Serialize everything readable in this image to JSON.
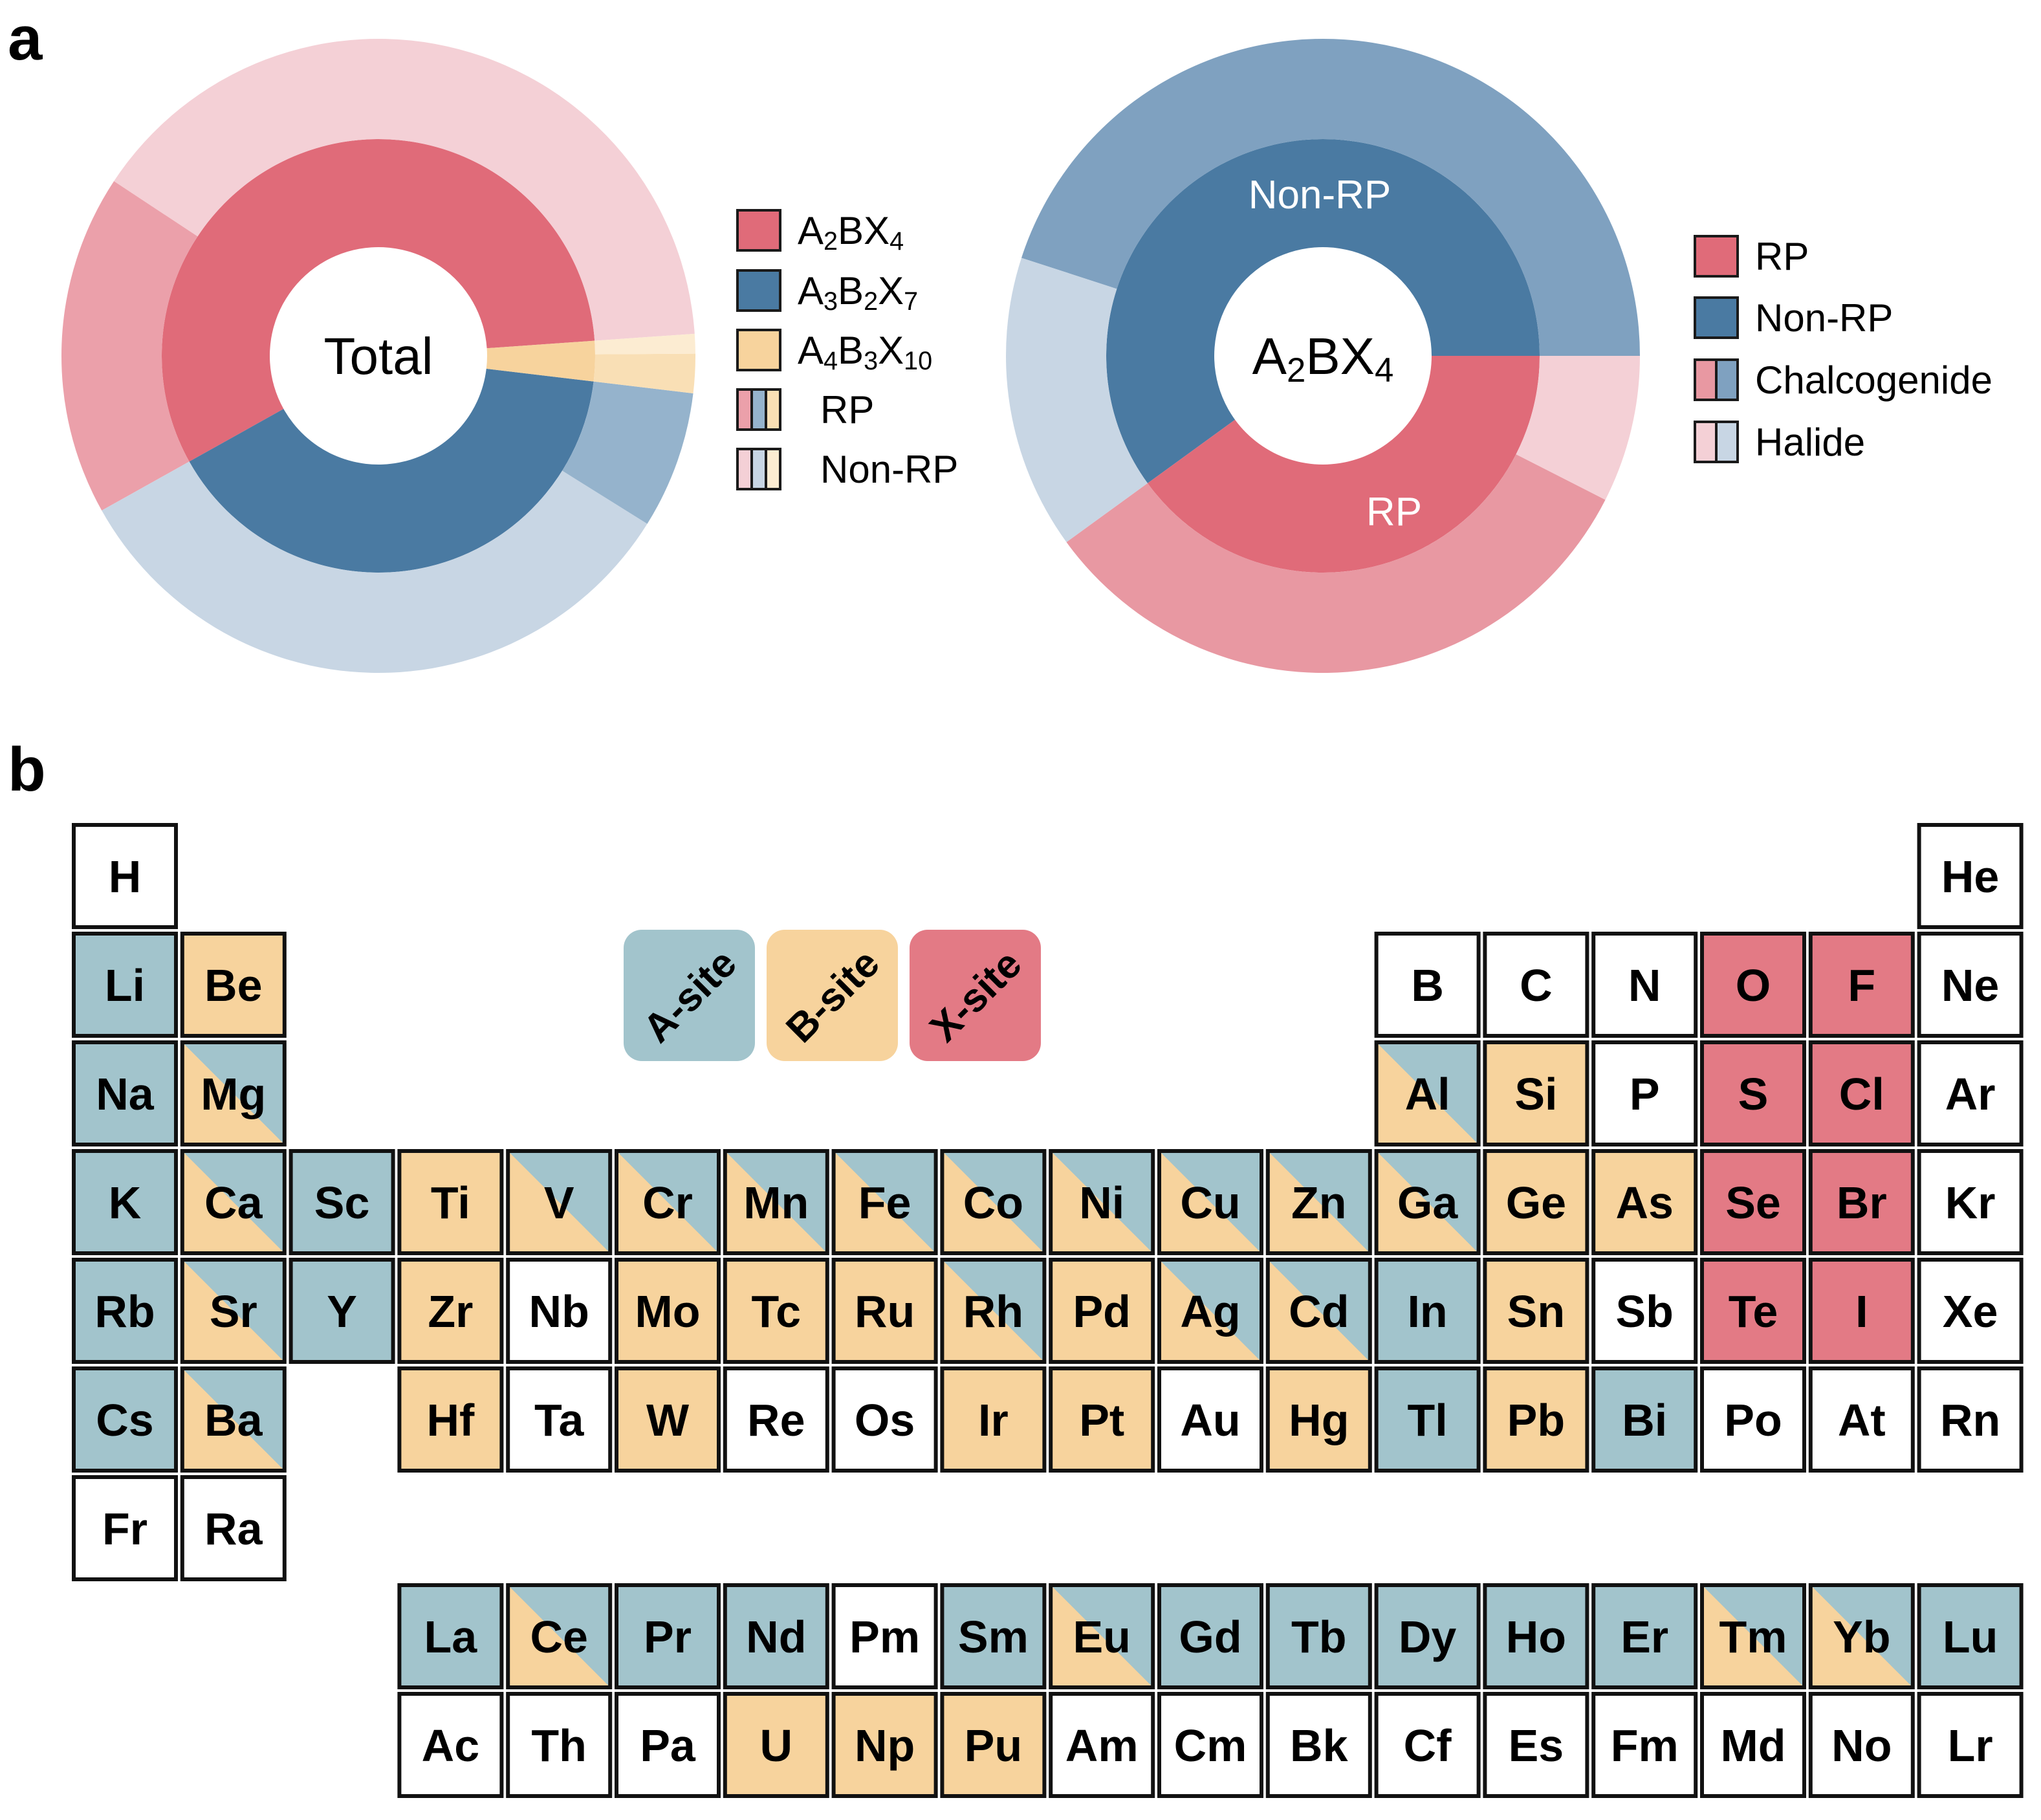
{
  "panel_a": {
    "letter": "a"
  },
  "panel_b": {
    "letter": "b"
  },
  "colors": {
    "A2BX4": "#e06b79",
    "A3B2X7": "#4a7aa2",
    "A4B3X10": "#f7d39d",
    "RP_red": "#eba0aa",
    "RP_blue": "#95b3cc",
    "RP_yellow": "#f9dfb5",
    "NonRP_red": "#f4d0d6",
    "NonRP_blue": "#c8d6e4",
    "NonRP_yellow": "#fcecd2",
    "outer_blue_dark": "#7fa1c0",
    "outer_red_mid": "#e898a2",
    "a_site": "#a2c4cc",
    "b_site": "#f7d39d",
    "x_site": "#e37a85",
    "empty": "#ffffff"
  },
  "chart_data": [
    {
      "type": "donut",
      "center_label": "Total",
      "inner_ring": [
        {
          "name": "A2BX4",
          "value": 57
        },
        {
          "name": "A3B2X7",
          "value": 40
        },
        {
          "name": "A4B3X10",
          "value": 3
        }
      ],
      "outer_ring": [
        {
          "group": "A2BX4",
          "kind": "Non-RP",
          "value": 39.6
        },
        {
          "group": "A2BX4",
          "kind": "RP",
          "value": 17.4
        },
        {
          "group": "A3B2X7",
          "kind": "Non-RP",
          "value": 33
        },
        {
          "group": "A3B2X7",
          "kind": "RP",
          "value": 7
        },
        {
          "group": "A4B3X10",
          "kind": "RP",
          "value": 2
        },
        {
          "group": "A4B3X10",
          "kind": "Non-RP",
          "value": 1
        }
      ],
      "legend": {
        "items": [
          {
            "kind": "solid",
            "color": "A2BX4",
            "label": "A",
            "s1": "2",
            "m": "BX",
            "s2": "4",
            "m2": "",
            "s3": ""
          },
          {
            "kind": "solid",
            "color": "A3B2X7",
            "label": "A",
            "s1": "3",
            "m": "B",
            "s2": "2",
            "m2": "X",
            "s3": "7"
          },
          {
            "kind": "solid",
            "color": "A4B3X10",
            "label": "A",
            "s1": "4",
            "m": "B",
            "s2": "3",
            "m2": "X",
            "s3": "10"
          },
          {
            "kind": "split3",
            "label": "RP"
          },
          {
            "kind": "split3",
            "label": "Non-RP"
          }
        ]
      }
    },
    {
      "type": "donut",
      "center_label": "A",
      "center_s1": "2",
      "center_m": "BX",
      "center_s2": "4",
      "inner_ring": [
        {
          "name": "Non-RP",
          "value": 60,
          "label": "Non-RP"
        },
        {
          "name": "RP",
          "value": 40,
          "label": "RP"
        }
      ],
      "outer_ring": [
        {
          "group": "Non-RP",
          "kind": "Chalcogenide",
          "value": 45
        },
        {
          "group": "Non-RP",
          "kind": "Halide",
          "value": 15
        },
        {
          "group": "RP",
          "kind": "Chalcogenide",
          "value": 32.5
        },
        {
          "group": "RP",
          "kind": "Halide",
          "value": 7.5
        }
      ],
      "legend": {
        "items": [
          {
            "kind": "solid",
            "color": "A2BX4",
            "label": "RP"
          },
          {
            "kind": "solid",
            "color": "A3B2X7",
            "label": "Non-RP"
          },
          {
            "kind": "split2",
            "label": "Chalcogenide"
          },
          {
            "kind": "split2",
            "label": "Halide"
          }
        ]
      }
    }
  ],
  "site_legend": [
    {
      "label": "A-site",
      "color": "a_site"
    },
    {
      "label": "B-site",
      "color": "b_site"
    },
    {
      "label": "X-site",
      "color": "x_site"
    }
  ],
  "periodic_table": [
    {
      "s": "H",
      "r": 1,
      "c": 1,
      "t": "N"
    },
    {
      "s": "He",
      "r": 1,
      "c": 18,
      "t": "N"
    },
    {
      "s": "Li",
      "r": 2,
      "c": 1,
      "t": "A"
    },
    {
      "s": "Be",
      "r": 2,
      "c": 2,
      "t": "B"
    },
    {
      "s": "B",
      "r": 2,
      "c": 13,
      "t": "N"
    },
    {
      "s": "C",
      "r": 2,
      "c": 14,
      "t": "N"
    },
    {
      "s": "N",
      "r": 2,
      "c": 15,
      "t": "N"
    },
    {
      "s": "O",
      "r": 2,
      "c": 16,
      "t": "X"
    },
    {
      "s": "F",
      "r": 2,
      "c": 17,
      "t": "X"
    },
    {
      "s": "Ne",
      "r": 2,
      "c": 18,
      "t": "N"
    },
    {
      "s": "Na",
      "r": 3,
      "c": 1,
      "t": "A"
    },
    {
      "s": "Mg",
      "r": 3,
      "c": 2,
      "t": "BA"
    },
    {
      "s": "Al",
      "r": 3,
      "c": 13,
      "t": "BA"
    },
    {
      "s": "Si",
      "r": 3,
      "c": 14,
      "t": "B"
    },
    {
      "s": "P",
      "r": 3,
      "c": 15,
      "t": "N"
    },
    {
      "s": "S",
      "r": 3,
      "c": 16,
      "t": "X"
    },
    {
      "s": "Cl",
      "r": 3,
      "c": 17,
      "t": "X"
    },
    {
      "s": "Ar",
      "r": 3,
      "c": 18,
      "t": "N"
    },
    {
      "s": "K",
      "r": 4,
      "c": 1,
      "t": "A"
    },
    {
      "s": "Ca",
      "r": 4,
      "c": 2,
      "t": "BA"
    },
    {
      "s": "Sc",
      "r": 4,
      "c": 3,
      "t": "A"
    },
    {
      "s": "Ti",
      "r": 4,
      "c": 4,
      "t": "B"
    },
    {
      "s": "V",
      "r": 4,
      "c": 5,
      "t": "BA"
    },
    {
      "s": "Cr",
      "r": 4,
      "c": 6,
      "t": "BA"
    },
    {
      "s": "Mn",
      "r": 4,
      "c": 7,
      "t": "BA"
    },
    {
      "s": "Fe",
      "r": 4,
      "c": 8,
      "t": "BA"
    },
    {
      "s": "Co",
      "r": 4,
      "c": 9,
      "t": "BA"
    },
    {
      "s": "Ni",
      "r": 4,
      "c": 10,
      "t": "BA"
    },
    {
      "s": "Cu",
      "r": 4,
      "c": 11,
      "t": "BA"
    },
    {
      "s": "Zn",
      "r": 4,
      "c": 12,
      "t": "BA"
    },
    {
      "s": "Ga",
      "r": 4,
      "c": 13,
      "t": "BA"
    },
    {
      "s": "Ge",
      "r": 4,
      "c": 14,
      "t": "B"
    },
    {
      "s": "As",
      "r": 4,
      "c": 15,
      "t": "B"
    },
    {
      "s": "Se",
      "r": 4,
      "c": 16,
      "t": "X"
    },
    {
      "s": "Br",
      "r": 4,
      "c": 17,
      "t": "X"
    },
    {
      "s": "Kr",
      "r": 4,
      "c": 18,
      "t": "N"
    },
    {
      "s": "Rb",
      "r": 5,
      "c": 1,
      "t": "A"
    },
    {
      "s": "Sr",
      "r": 5,
      "c": 2,
      "t": "BA"
    },
    {
      "s": "Y",
      "r": 5,
      "c": 3,
      "t": "A"
    },
    {
      "s": "Zr",
      "r": 5,
      "c": 4,
      "t": "B"
    },
    {
      "s": "Nb",
      "r": 5,
      "c": 5,
      "t": "N"
    },
    {
      "s": "Mo",
      "r": 5,
      "c": 6,
      "t": "B"
    },
    {
      "s": "Tc",
      "r": 5,
      "c": 7,
      "t": "B"
    },
    {
      "s": "Ru",
      "r": 5,
      "c": 8,
      "t": "B"
    },
    {
      "s": "Rh",
      "r": 5,
      "c": 9,
      "t": "BA"
    },
    {
      "s": "Pd",
      "r": 5,
      "c": 10,
      "t": "B"
    },
    {
      "s": "Ag",
      "r": 5,
      "c": 11,
      "t": "BA"
    },
    {
      "s": "Cd",
      "r": 5,
      "c": 12,
      "t": "BA"
    },
    {
      "s": "In",
      "r": 5,
      "c": 13,
      "t": "A"
    },
    {
      "s": "Sn",
      "r": 5,
      "c": 14,
      "t": "B"
    },
    {
      "s": "Sb",
      "r": 5,
      "c": 15,
      "t": "N"
    },
    {
      "s": "Te",
      "r": 5,
      "c": 16,
      "t": "X"
    },
    {
      "s": "I",
      "r": 5,
      "c": 17,
      "t": "X"
    },
    {
      "s": "Xe",
      "r": 5,
      "c": 18,
      "t": "N"
    },
    {
      "s": "Cs",
      "r": 6,
      "c": 1,
      "t": "A"
    },
    {
      "s": "Ba",
      "r": 6,
      "c": 2,
      "t": "BA"
    },
    {
      "s": "Hf",
      "r": 6,
      "c": 4,
      "t": "B"
    },
    {
      "s": "Ta",
      "r": 6,
      "c": 5,
      "t": "N"
    },
    {
      "s": "W",
      "r": 6,
      "c": 6,
      "t": "B"
    },
    {
      "s": "Re",
      "r": 6,
      "c": 7,
      "t": "N"
    },
    {
      "s": "Os",
      "r": 6,
      "c": 8,
      "t": "N"
    },
    {
      "s": "Ir",
      "r": 6,
      "c": 9,
      "t": "B"
    },
    {
      "s": "Pt",
      "r": 6,
      "c": 10,
      "t": "B"
    },
    {
      "s": "Au",
      "r": 6,
      "c": 11,
      "t": "N"
    },
    {
      "s": "Hg",
      "r": 6,
      "c": 12,
      "t": "B"
    },
    {
      "s": "Tl",
      "r": 6,
      "c": 13,
      "t": "A"
    },
    {
      "s": "Pb",
      "r": 6,
      "c": 14,
      "t": "B"
    },
    {
      "s": "Bi",
      "r": 6,
      "c": 15,
      "t": "A"
    },
    {
      "s": "Po",
      "r": 6,
      "c": 16,
      "t": "N"
    },
    {
      "s": "At",
      "r": 6,
      "c": 17,
      "t": "N"
    },
    {
      "s": "Rn",
      "r": 6,
      "c": 18,
      "t": "N"
    },
    {
      "s": "Fr",
      "r": 7,
      "c": 1,
      "t": "N"
    },
    {
      "s": "Ra",
      "r": 7,
      "c": 2,
      "t": "N"
    },
    {
      "s": "La",
      "r": 8,
      "c": 4,
      "t": "A"
    },
    {
      "s": "Ce",
      "r": 8,
      "c": 5,
      "t": "BA"
    },
    {
      "s": "Pr",
      "r": 8,
      "c": 6,
      "t": "A"
    },
    {
      "s": "Nd",
      "r": 8,
      "c": 7,
      "t": "A"
    },
    {
      "s": "Pm",
      "r": 8,
      "c": 8,
      "t": "N"
    },
    {
      "s": "Sm",
      "r": 8,
      "c": 9,
      "t": "A"
    },
    {
      "s": "Eu",
      "r": 8,
      "c": 10,
      "t": "BA"
    },
    {
      "s": "Gd",
      "r": 8,
      "c": 11,
      "t": "A"
    },
    {
      "s": "Tb",
      "r": 8,
      "c": 12,
      "t": "A"
    },
    {
      "s": "Dy",
      "r": 8,
      "c": 13,
      "t": "A"
    },
    {
      "s": "Ho",
      "r": 8,
      "c": 14,
      "t": "A"
    },
    {
      "s": "Er",
      "r": 8,
      "c": 15,
      "t": "A"
    },
    {
      "s": "Tm",
      "r": 8,
      "c": 16,
      "t": "BA"
    },
    {
      "s": "Yb",
      "r": 8,
      "c": 17,
      "t": "BA"
    },
    {
      "s": "Lu",
      "r": 8,
      "c": 18,
      "t": "A"
    },
    {
      "s": "Ac",
      "r": 9,
      "c": 4,
      "t": "N"
    },
    {
      "s": "Th",
      "r": 9,
      "c": 5,
      "t": "N"
    },
    {
      "s": "Pa",
      "r": 9,
      "c": 6,
      "t": "N"
    },
    {
      "s": "U",
      "r": 9,
      "c": 7,
      "t": "B"
    },
    {
      "s": "Np",
      "r": 9,
      "c": 8,
      "t": "B"
    },
    {
      "s": "Pu",
      "r": 9,
      "c": 9,
      "t": "B"
    },
    {
      "s": "Am",
      "r": 9,
      "c": 10,
      "t": "N"
    },
    {
      "s": "Cm",
      "r": 9,
      "c": 11,
      "t": "N"
    },
    {
      "s": "Bk",
      "r": 9,
      "c": 12,
      "t": "N"
    },
    {
      "s": "Cf",
      "r": 9,
      "c": 13,
      "t": "N"
    },
    {
      "s": "Es",
      "r": 9,
      "c": 14,
      "t": "N"
    },
    {
      "s": "Fm",
      "r": 9,
      "c": 15,
      "t": "N"
    },
    {
      "s": "Md",
      "r": 9,
      "c": 16,
      "t": "N"
    },
    {
      "s": "No",
      "r": 9,
      "c": 17,
      "t": "N"
    },
    {
      "s": "Lr",
      "r": 9,
      "c": 18,
      "t": "N"
    }
  ]
}
